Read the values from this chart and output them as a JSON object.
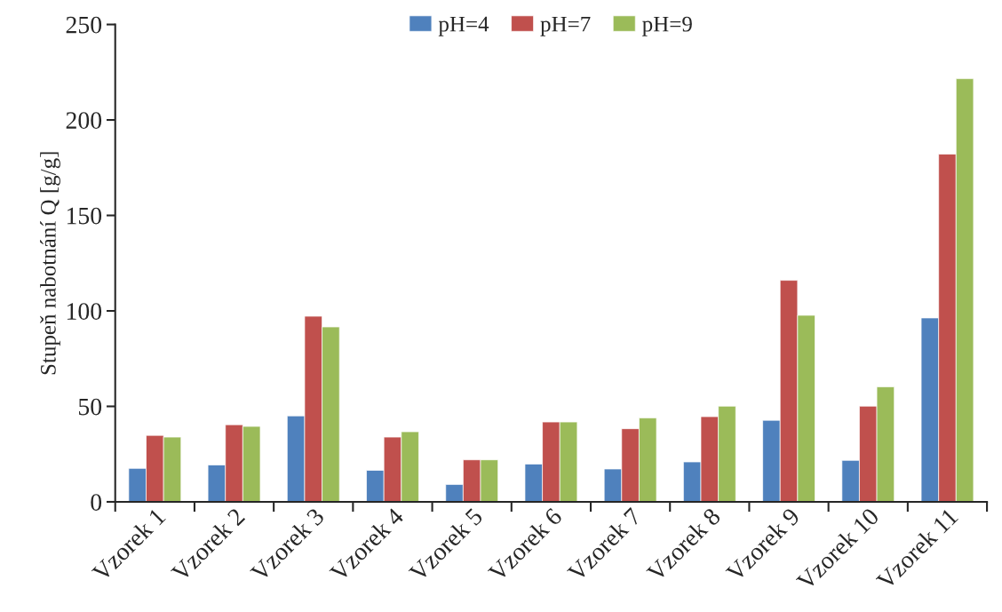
{
  "chart_data": {
    "type": "bar",
    "ylabel": "Stupeň nabotnání Q [g/g]",
    "categories": [
      "Vzorek 1",
      "Vzorek 2",
      "Vzorek 3",
      "Vzorek 4",
      "Vzorek 5",
      "Vzorek 6",
      "Vzorek 7",
      "Vzorek 8",
      "Vzorek 9",
      "Vzorek 10",
      "Vzorek 11"
    ],
    "series": [
      {
        "name": "pH=4",
        "color": "#4f81bd",
        "values": [
          17.5,
          19.3,
          45,
          16.5,
          9.1,
          19.8,
          17.2,
          20.9,
          42.7,
          21.7,
          96.3
        ]
      },
      {
        "name": "pH=7",
        "color": "#c0504d",
        "values": [
          34.8,
          40.4,
          97.2,
          33.9,
          22,
          41.8,
          38.3,
          44.6,
          116,
          50.1,
          182.1
        ]
      },
      {
        "name": "pH=9",
        "color": "#9bbb59",
        "values": [
          33.9,
          39.5,
          91.6,
          36.7,
          22,
          41.8,
          43.9,
          50.1,
          97.7,
          60.2,
          221.6
        ]
      }
    ],
    "ylim": [
      0,
      250
    ],
    "yticks": [
      0,
      50,
      100,
      150,
      200,
      250
    ],
    "grid": false,
    "legend": "top"
  }
}
